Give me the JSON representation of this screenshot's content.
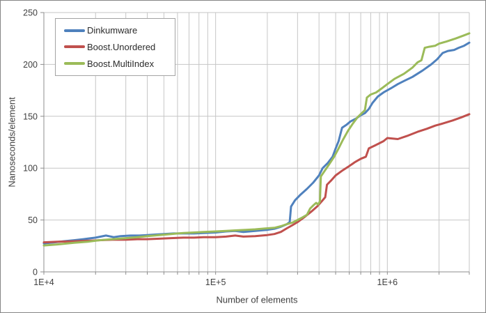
{
  "chart_data": {
    "type": "line",
    "title": "",
    "xlabel": "Number of elements",
    "ylabel": "Nanoseconds/element",
    "x_scale": "log",
    "xlim": [
      10000,
      3000000
    ],
    "ylim": [
      0,
      250
    ],
    "grid": "horizontal major + vertical log minor gridlines, light gray",
    "legend_position": "top-left inside plot",
    "x_major_ticks": [
      {
        "value": 10000,
        "label": "1E+4"
      },
      {
        "value": 100000,
        "label": "1E+5"
      },
      {
        "value": 1000000,
        "label": "1E+6"
      }
    ],
    "y_ticks": [
      {
        "value": 0,
        "label": "0"
      },
      {
        "value": 50,
        "label": "50"
      },
      {
        "value": 100,
        "label": "100"
      },
      {
        "value": 150,
        "label": "150"
      },
      {
        "value": 200,
        "label": "200"
      },
      {
        "value": 250,
        "label": "250"
      }
    ],
    "series": [
      {
        "name": "Dinkumware",
        "color": "#4F81BD",
        "points": [
          [
            10000,
            27.5
          ],
          [
            11500,
            28.5
          ],
          [
            13000,
            29.5
          ],
          [
            15000,
            30.5
          ],
          [
            17000,
            31.5
          ],
          [
            20000,
            33
          ],
          [
            23000,
            35
          ],
          [
            25500,
            33.5
          ],
          [
            28000,
            34.5
          ],
          [
            32000,
            35
          ],
          [
            36000,
            35
          ],
          [
            40000,
            35.5
          ],
          [
            45000,
            36
          ],
          [
            50000,
            36.5
          ],
          [
            57000,
            37
          ],
          [
            65000,
            37
          ],
          [
            75000,
            37
          ],
          [
            85000,
            37.5
          ],
          [
            100000,
            38
          ],
          [
            115000,
            39
          ],
          [
            130000,
            39.5
          ],
          [
            145000,
            38.5
          ],
          [
            170000,
            39.5
          ],
          [
            200000,
            40.5
          ],
          [
            220000,
            41.5
          ],
          [
            240000,
            43.5
          ],
          [
            260000,
            46
          ],
          [
            270000,
            48
          ],
          [
            275000,
            63
          ],
          [
            290000,
            69
          ],
          [
            310000,
            74
          ],
          [
            340000,
            80
          ],
          [
            370000,
            86
          ],
          [
            400000,
            93
          ],
          [
            420000,
            100
          ],
          [
            450000,
            105
          ],
          [
            480000,
            111
          ],
          [
            500000,
            119
          ],
          [
            520000,
            126
          ],
          [
            545000,
            139
          ],
          [
            580000,
            142
          ],
          [
            610000,
            145
          ],
          [
            660000,
            148
          ],
          [
            700000,
            151
          ],
          [
            740000,
            153
          ],
          [
            780000,
            157
          ],
          [
            820000,
            163
          ],
          [
            880000,
            169
          ],
          [
            950000,
            173
          ],
          [
            1050000,
            177
          ],
          [
            1150000,
            181
          ],
          [
            1250000,
            184
          ],
          [
            1400000,
            188
          ],
          [
            1600000,
            194
          ],
          [
            1800000,
            200
          ],
          [
            1950000,
            205
          ],
          [
            2100000,
            211
          ],
          [
            2250000,
            213
          ],
          [
            2450000,
            214
          ],
          [
            2600000,
            216
          ],
          [
            2800000,
            218
          ],
          [
            3000000,
            221
          ]
        ]
      },
      {
        "name": "Boost.Unordered",
        "color": "#C0504D",
        "points": [
          [
            10000,
            28.5
          ],
          [
            12000,
            29
          ],
          [
            15000,
            29.5
          ],
          [
            18000,
            30
          ],
          [
            21000,
            30.5
          ],
          [
            25000,
            31
          ],
          [
            30000,
            31
          ],
          [
            35000,
            31.5
          ],
          [
            40000,
            31.5
          ],
          [
            47000,
            32
          ],
          [
            55000,
            32.5
          ],
          [
            65000,
            33
          ],
          [
            75000,
            33
          ],
          [
            85000,
            33.5
          ],
          [
            100000,
            33.5
          ],
          [
            115000,
            34
          ],
          [
            130000,
            35
          ],
          [
            145000,
            34
          ],
          [
            170000,
            34.5
          ],
          [
            200000,
            35.5
          ],
          [
            220000,
            36.5
          ],
          [
            240000,
            38.5
          ],
          [
            260000,
            42
          ],
          [
            280000,
            45
          ],
          [
            300000,
            48
          ],
          [
            330000,
            53
          ],
          [
            360000,
            58
          ],
          [
            390000,
            63
          ],
          [
            415000,
            68
          ],
          [
            435000,
            72
          ],
          [
            445000,
            84
          ],
          [
            470000,
            88
          ],
          [
            500000,
            93
          ],
          [
            550000,
            98
          ],
          [
            600000,
            102
          ],
          [
            650000,
            106
          ],
          [
            700000,
            109
          ],
          [
            750000,
            111
          ],
          [
            780000,
            119
          ],
          [
            850000,
            122
          ],
          [
            950000,
            126
          ],
          [
            1000000,
            129
          ],
          [
            1150000,
            128
          ],
          [
            1300000,
            131
          ],
          [
            1500000,
            135
          ],
          [
            1700000,
            138
          ],
          [
            1900000,
            141
          ],
          [
            2100000,
            143
          ],
          [
            2400000,
            146
          ],
          [
            2700000,
            149
          ],
          [
            3000000,
            152
          ]
        ]
      },
      {
        "name": "Boost.MultiIndex",
        "color": "#9BBB59",
        "points": [
          [
            10000,
            25.5
          ],
          [
            12000,
            26.5
          ],
          [
            15000,
            28
          ],
          [
            18000,
            29
          ],
          [
            21000,
            30.5
          ],
          [
            25000,
            31.5
          ],
          [
            30000,
            32.5
          ],
          [
            35000,
            33.5
          ],
          [
            40000,
            34.5
          ],
          [
            47000,
            35.5
          ],
          [
            55000,
            36.5
          ],
          [
            65000,
            37.5
          ],
          [
            75000,
            38
          ],
          [
            85000,
            38.5
          ],
          [
            100000,
            39
          ],
          [
            115000,
            39.5
          ],
          [
            130000,
            40
          ],
          [
            150000,
            40.5
          ],
          [
            170000,
            41
          ],
          [
            200000,
            42
          ],
          [
            220000,
            42.5
          ],
          [
            240000,
            44
          ],
          [
            260000,
            46
          ],
          [
            280000,
            47.5
          ],
          [
            300000,
            50
          ],
          [
            320000,
            52.5
          ],
          [
            340000,
            55
          ],
          [
            355000,
            61
          ],
          [
            370000,
            64
          ],
          [
            385000,
            66.5
          ],
          [
            395000,
            65
          ],
          [
            405000,
            68
          ],
          [
            410000,
            92
          ],
          [
            430000,
            97
          ],
          [
            460000,
            104
          ],
          [
            490000,
            111
          ],
          [
            520000,
            119
          ],
          [
            550000,
            127
          ],
          [
            590000,
            136
          ],
          [
            630000,
            143
          ],
          [
            670000,
            149
          ],
          [
            710000,
            153
          ],
          [
            740000,
            156
          ],
          [
            760000,
            168
          ],
          [
            800000,
            171
          ],
          [
            860000,
            173
          ],
          [
            930000,
            177
          ],
          [
            1000000,
            181
          ],
          [
            1100000,
            186
          ],
          [
            1250000,
            191
          ],
          [
            1400000,
            197
          ],
          [
            1500000,
            202
          ],
          [
            1580000,
            204
          ],
          [
            1650000,
            216
          ],
          [
            1750000,
            217
          ],
          [
            1900000,
            218
          ],
          [
            2000000,
            220
          ],
          [
            2200000,
            222
          ],
          [
            2500000,
            225
          ],
          [
            2800000,
            228
          ],
          [
            3000000,
            230
          ]
        ]
      }
    ],
    "style": {
      "gridline_color": "#c6c6c6",
      "axis_color": "#8c8c8c",
      "tick_label_color": "#404040",
      "line_width": 3
    }
  }
}
